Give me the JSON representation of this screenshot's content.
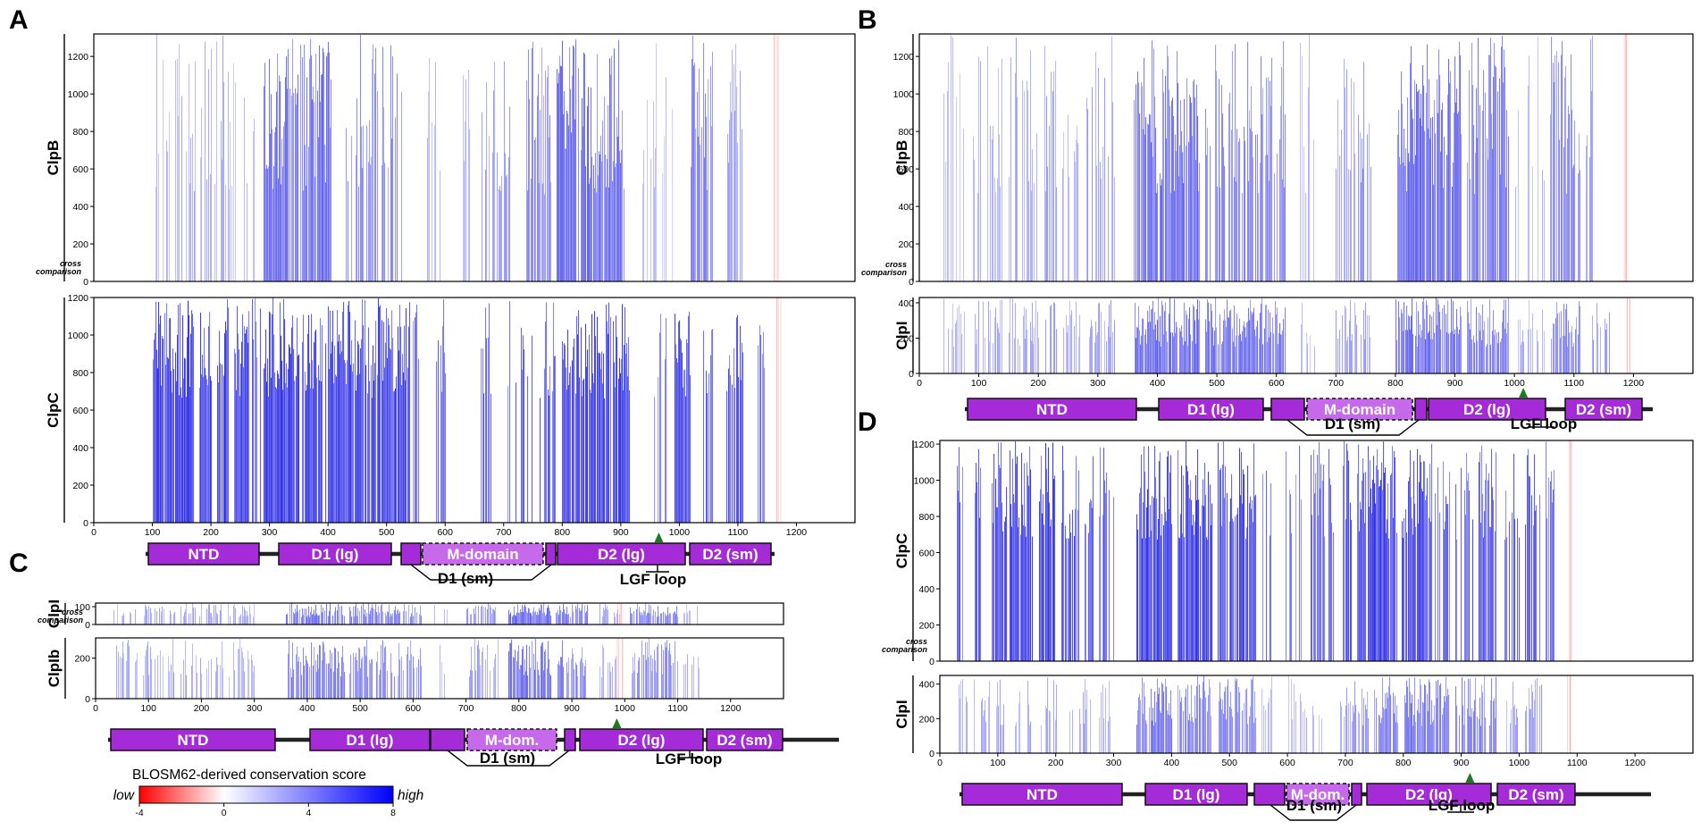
{
  "chart_data": [
    {
      "type": "heatmap",
      "panel_label": "A",
      "x_axis": {
        "range": [
          0,
          1300
        ],
        "ticks": [
          0,
          100,
          200,
          300,
          400,
          500,
          600,
          700,
          800,
          900,
          1000,
          1100,
          1200
        ]
      },
      "cross_label": [
        "cross",
        "comparison"
      ],
      "tracks": [
        {
          "ylabel": "ClpB",
          "yrange": [
            0,
            1320
          ],
          "yticks": [
            0,
            200,
            400,
            600,
            800,
            1000,
            1200
          ],
          "mode": "faint",
          "bands": [
            [
              95,
              145,
              0.35
            ],
            [
              150,
              200,
              0.45
            ],
            [
              205,
              225,
              0.5
            ],
            [
              225,
              275,
              0.28
            ],
            [
              290,
              405,
              0.88
            ],
            [
              425,
              525,
              0.65
            ],
            [
              565,
              595,
              0.32
            ],
            [
              615,
              645,
              0.28
            ],
            [
              660,
              710,
              0.5
            ],
            [
              735,
              780,
              0.68
            ],
            [
              790,
              905,
              0.9
            ],
            [
              935,
              990,
              0.28
            ],
            [
              1020,
              1060,
              0.72
            ],
            [
              1080,
              1110,
              0.48
            ]
          ],
          "red": [
            1165
          ]
        },
        {
          "ylabel": "ClpC",
          "yrange": [
            0,
            1200
          ],
          "yticks": [
            0,
            200,
            400,
            600,
            800,
            1000,
            1200
          ],
          "mode": "dense",
          "bands": [
            [
              100,
              170,
              0.95
            ],
            [
              180,
              200,
              0.85
            ],
            [
              210,
              230,
              0.9
            ],
            [
              240,
              265,
              0.85
            ],
            [
              270,
              285,
              0.6
            ],
            [
              290,
              350,
              0.9
            ],
            [
              355,
              390,
              0.85
            ],
            [
              395,
              400,
              0.6
            ],
            [
              400,
              540,
              0.88
            ],
            [
              545,
              555,
              0.5
            ],
            [
              585,
              600,
              0.6
            ],
            [
              660,
              680,
              0.6
            ],
            [
              700,
              710,
              0.3
            ],
            [
              720,
              750,
              0.55
            ],
            [
              760,
              790,
              0.72
            ],
            [
              800,
              915,
              0.9
            ],
            [
              950,
              980,
              0.3
            ],
            [
              990,
              1020,
              0.72
            ],
            [
              1040,
              1060,
              0.5
            ],
            [
              1080,
              1110,
              0.72
            ],
            [
              1130,
              1145,
              0.35
            ]
          ],
          "red": [
            1170
          ]
        }
      ],
      "domain_map": {
        "domains": [
          "NTD",
          "D1 (lg)",
          "",
          "M-domain",
          "",
          "D2 (lg)",
          "D2 (sm)"
        ],
        "sublabels": [
          "D1 (sm)",
          "LGF loop"
        ],
        "marker_x": 965
      }
    },
    {
      "type": "heatmap",
      "panel_label": "B",
      "x_axis": {
        "range": [
          0,
          1300
        ],
        "ticks": [
          0,
          100,
          200,
          300,
          400,
          500,
          600,
          700,
          800,
          900,
          1000,
          1100,
          1200
        ]
      },
      "cross_label": [
        "cross",
        "comparison"
      ],
      "tracks": [
        {
          "ylabel": "ClpB",
          "yrange": [
            0,
            1320
          ],
          "yticks": [
            0,
            200,
            400,
            600,
            800,
            1000,
            1200
          ],
          "mode": "faint",
          "bands": [
            [
              40,
              75,
              0.28
            ],
            [
              90,
              140,
              0.35
            ],
            [
              150,
              200,
              0.45
            ],
            [
              210,
              230,
              0.5
            ],
            [
              240,
              270,
              0.35
            ],
            [
              280,
              330,
              0.5
            ],
            [
              360,
              470,
              0.88
            ],
            [
              480,
              615,
              0.7
            ],
            [
              640,
              665,
              0.3
            ],
            [
              700,
              760,
              0.5
            ],
            [
              800,
              910,
              0.9
            ],
            [
              920,
              990,
              0.75
            ],
            [
              1000,
              1050,
              0.35
            ],
            [
              1060,
              1110,
              0.72
            ],
            [
              1120,
              1135,
              0.45
            ]
          ],
          "red": [
            1185
          ]
        },
        {
          "ylabel": "ClpI",
          "yrange": [
            0,
            430
          ],
          "yticks": [
            0,
            200,
            400
          ],
          "mode": "faint",
          "bands": [
            [
              40,
              80,
              0.35
            ],
            [
              90,
              140,
              0.4
            ],
            [
              150,
              200,
              0.45
            ],
            [
              210,
              230,
              0.5
            ],
            [
              240,
              270,
              0.35
            ],
            [
              280,
              330,
              0.5
            ],
            [
              360,
              470,
              0.92
            ],
            [
              480,
              615,
              0.82
            ],
            [
              640,
              665,
              0.3
            ],
            [
              700,
              760,
              0.5
            ],
            [
              800,
              910,
              0.9
            ],
            [
              920,
              990,
              0.75
            ],
            [
              1000,
              1050,
              0.35
            ],
            [
              1060,
              1110,
              0.7
            ],
            [
              1130,
              1160,
              0.55
            ]
          ],
          "red": [
            1190
          ]
        }
      ],
      "domain_map": {
        "domains": [
          "NTD",
          "D1 (lg)",
          "",
          "M-domain",
          "",
          "D2 (lg)",
          "D2 (sm)"
        ],
        "sublabels": [
          "D1 (sm)",
          "LGF loop"
        ],
        "marker_x": 1015
      }
    },
    {
      "type": "heatmap",
      "panel_label": "C",
      "x_axis": {
        "range": [
          0,
          1300
        ],
        "ticks": [
          0,
          100,
          200,
          300,
          400,
          500,
          600,
          700,
          800,
          900,
          1000,
          1100,
          1200
        ]
      },
      "cross_label": [
        "cross",
        "comparison"
      ],
      "tracks": [
        {
          "ylabel": "ClpI",
          "yrange": [
            0,
            120
          ],
          "yticks": [
            0,
            100
          ],
          "mode": "faint",
          "bands": [
            [
              30,
              80,
              0.35
            ],
            [
              90,
              150,
              0.45
            ],
            [
              160,
              200,
              0.45
            ],
            [
              210,
              240,
              0.5
            ],
            [
              250,
              300,
              0.35
            ],
            [
              360,
              470,
              0.8
            ],
            [
              480,
              615,
              0.7
            ],
            [
              640,
              665,
              0.3
            ],
            [
              700,
              760,
              0.55
            ],
            [
              780,
              860,
              0.9
            ],
            [
              870,
              930,
              0.75
            ],
            [
              950,
              990,
              0.4
            ],
            [
              1010,
              1100,
              0.7
            ],
            [
              1110,
              1140,
              0.35
            ]
          ],
          "red": [
            990
          ]
        },
        {
          "ylabel": "ClpIb",
          "yrange": [
            0,
            300
          ],
          "yticks": [
            0,
            200
          ],
          "mode": "faint",
          "bands": [
            [
              30,
              80,
              0.35
            ],
            [
              90,
              150,
              0.4
            ],
            [
              160,
              200,
              0.4
            ],
            [
              210,
              240,
              0.45
            ],
            [
              250,
              300,
              0.35
            ],
            [
              360,
              470,
              0.75
            ],
            [
              480,
              615,
              0.65
            ],
            [
              640,
              665,
              0.3
            ],
            [
              700,
              760,
              0.5
            ],
            [
              780,
              860,
              0.85
            ],
            [
              870,
              930,
              0.7
            ],
            [
              950,
              990,
              0.35
            ],
            [
              1010,
              1100,
              0.65
            ],
            [
              1110,
              1140,
              0.35
            ]
          ],
          "red": [
            990
          ]
        }
      ],
      "domain_map": {
        "domains": [
          "NTD",
          "D1 (lg)",
          "",
          "M-dom.",
          "",
          "D2 (lg)",
          "D2 (sm)"
        ],
        "sublabels": [
          "D1 (sm)",
          "LGF loop"
        ],
        "marker_x": 985
      }
    },
    {
      "type": "heatmap",
      "panel_label": "D",
      "x_axis": {
        "range": [
          0,
          1300
        ],
        "ticks": [
          0,
          100,
          200,
          300,
          400,
          500,
          600,
          700,
          800,
          900,
          1000,
          1100,
          1200
        ]
      },
      "cross_label": [
        "cross",
        "comparison"
      ],
      "tracks": [
        {
          "ylabel": "ClpC",
          "yrange": [
            0,
            1220
          ],
          "yticks": [
            0,
            200,
            400,
            600,
            800,
            1000,
            1200
          ],
          "mode": "dense",
          "bands": [
            [
              30,
              40,
              0.6
            ],
            [
              60,
              70,
              0.9
            ],
            [
              90,
              115,
              0.9
            ],
            [
              120,
              160,
              0.9
            ],
            [
              170,
              200,
              0.85
            ],
            [
              210,
              240,
              0.72
            ],
            [
              250,
              265,
              0.5
            ],
            [
              275,
              300,
              0.6
            ],
            [
              340,
              400,
              0.9
            ],
            [
              410,
              470,
              0.9
            ],
            [
              480,
              545,
              0.82
            ],
            [
              555,
              575,
              0.4
            ],
            [
              595,
              625,
              0.3
            ],
            [
              640,
              680,
              0.45
            ],
            [
              695,
              710,
              0.7
            ],
            [
              720,
              790,
              0.9
            ],
            [
              795,
              850,
              0.82
            ],
            [
              855,
              880,
              0.6
            ],
            [
              890,
              920,
              0.6
            ],
            [
              930,
              960,
              0.75
            ],
            [
              975,
              1000,
              0.55
            ],
            [
              1010,
              1035,
              0.65
            ],
            [
              1040,
              1060,
              0.45
            ]
          ],
          "red": [
            1085
          ]
        },
        {
          "ylabel": "ClpI",
          "yrange": [
            0,
            450
          ],
          "yticks": [
            0,
            200,
            400
          ],
          "mode": "faint",
          "bands": [
            [
              30,
              60,
              0.35
            ],
            [
              70,
              110,
              0.4
            ],
            [
              120,
              160,
              0.45
            ],
            [
              170,
              210,
              0.4
            ],
            [
              220,
              260,
              0.45
            ],
            [
              270,
              300,
              0.35
            ],
            [
              340,
              400,
              0.8
            ],
            [
              410,
              470,
              0.72
            ],
            [
              480,
              545,
              0.65
            ],
            [
              555,
              575,
              0.35
            ],
            [
              600,
              660,
              0.35
            ],
            [
              690,
              740,
              0.55
            ],
            [
              750,
              790,
              0.7
            ],
            [
              800,
              880,
              0.8
            ],
            [
              890,
              960,
              0.72
            ],
            [
              975,
              1000,
              0.45
            ],
            [
              1010,
              1040,
              0.55
            ]
          ],
          "red": [
            1085
          ]
        }
      ],
      "domain_map": {
        "domains": [
          "NTD",
          "D1 (lg)",
          "",
          "M-dom.",
          "",
          "D2 (lg)",
          "D2 (sm)"
        ],
        "sublabels": [
          "D1 (sm)",
          "LGF loop"
        ],
        "marker_x": 915
      }
    }
  ],
  "legend": {
    "title": "BLOSM62-derived conservation score",
    "low_label": "low",
    "high_label": "high",
    "ticks": [
      -4,
      0,
      4,
      8
    ],
    "colors": [
      "#ff0000",
      "#ffffff",
      "#0000ff"
    ]
  },
  "colors": {
    "domain_fill": "#a52ad8",
    "mdomain_fill": "#c669ea",
    "marker": "#1e7a1e",
    "high": "#2a2ae6"
  }
}
